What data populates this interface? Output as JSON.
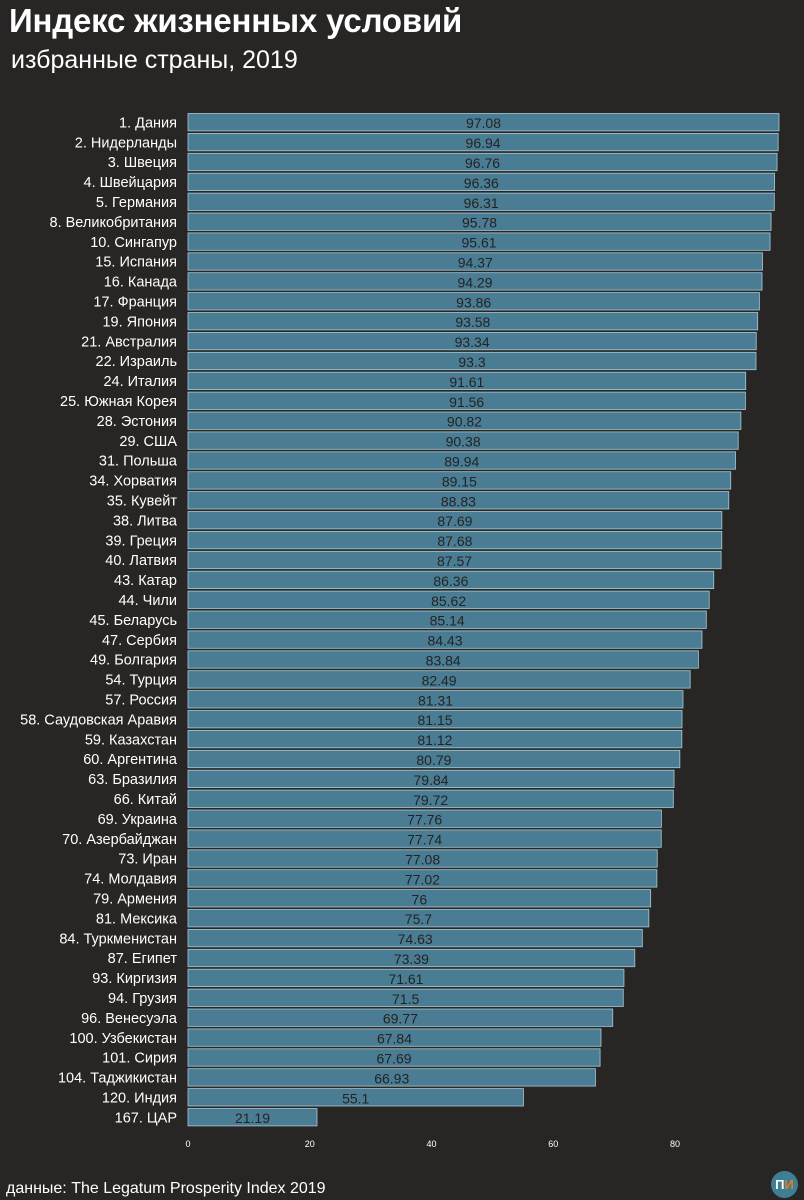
{
  "title": "Индекс жизненных условий",
  "subtitle": "избранные страны, 2019",
  "source": "данные: The Legatum Prosperity Index 2019",
  "logo": {
    "part1": "П",
    "part2": "И"
  },
  "colors": {
    "background": "#282624",
    "bar": "#4a7d93",
    "bar_edge": "#a9c8d4",
    "value_label": "#232323",
    "text": "#ffffff"
  },
  "chart_data": {
    "type": "bar",
    "orientation": "horizontal",
    "title": "Индекс жизненных условий",
    "subtitle": "избранные страны, 2019",
    "xlim": [
      0,
      97.08
    ],
    "xticks": [
      0,
      20,
      40,
      60,
      80
    ],
    "xtick_labels": [
      "0",
      "20",
      "40",
      "60",
      "80"
    ],
    "categories": [
      "1. Дания",
      "2. Нидерланды",
      "3. Швеция",
      "4. Швейцария",
      "5. Германия",
      "8. Великобритания",
      "10. Сингапур",
      "15. Испания",
      "16. Канада",
      "17. Франция",
      "19. Япония",
      "21. Австралия",
      "22. Израиль",
      "24. Италия",
      "25. Южная Корея",
      "28. Эстония",
      "29. США",
      "31. Польша",
      "34. Хорватия",
      "35. Кувейт",
      "38. Литва",
      "39. Греция",
      "40. Латвия",
      "43. Катар",
      "44. Чили",
      "45. Беларусь",
      "47. Сербия",
      "49. Болгария",
      "54. Турция",
      "57. Россия",
      "58. Саудовская Аравия",
      "59. Казахстан",
      "60. Аргентина",
      "63. Бразилия",
      "66. Китай",
      "69. Украина",
      "70. Азербайджан",
      "73. Иран",
      "74. Молдавия",
      "79. Армения",
      "81. Мексика",
      "84. Туркменистан",
      "87. Египет",
      "93. Киргизия",
      "94. Грузия",
      "96. Венесуэла",
      "100. Узбекистан",
      "101. Сирия",
      "104. Таджикистан",
      "120. Индия",
      "167. ЦАР"
    ],
    "values": [
      97.08,
      96.94,
      96.76,
      96.36,
      96.31,
      95.78,
      95.61,
      94.37,
      94.29,
      93.86,
      93.58,
      93.34,
      93.3,
      91.61,
      91.56,
      90.82,
      90.38,
      89.94,
      89.15,
      88.83,
      87.69,
      87.68,
      87.57,
      86.36,
      85.62,
      85.14,
      84.43,
      83.84,
      82.49,
      81.31,
      81.15,
      81.12,
      80.79,
      79.84,
      79.72,
      77.76,
      77.74,
      77.08,
      77.02,
      76,
      75.7,
      74.63,
      73.39,
      71.61,
      71.5,
      69.77,
      67.84,
      67.69,
      66.93,
      55.1,
      21.19
    ],
    "value_labels": [
      "97.08",
      "96.94",
      "96.76",
      "96.36",
      "96.31",
      "95.78",
      "95.61",
      "94.37",
      "94.29",
      "93.86",
      "93.58",
      "93.34",
      "93.3",
      "91.61",
      "91.56",
      "90.82",
      "90.38",
      "89.94",
      "89.15",
      "88.83",
      "87.69",
      "87.68",
      "87.57",
      "86.36",
      "85.62",
      "85.14",
      "84.43",
      "83.84",
      "82.49",
      "81.31",
      "81.15",
      "81.12",
      "80.79",
      "79.84",
      "79.72",
      "77.76",
      "77.74",
      "77.08",
      "77.02",
      "76",
      "75.7",
      "74.63",
      "73.39",
      "71.61",
      "71.5",
      "69.77",
      "67.84",
      "67.69",
      "66.93",
      "55.1",
      "21.19"
    ],
    "xlabel": "",
    "ylabel": "",
    "grid": false
  }
}
